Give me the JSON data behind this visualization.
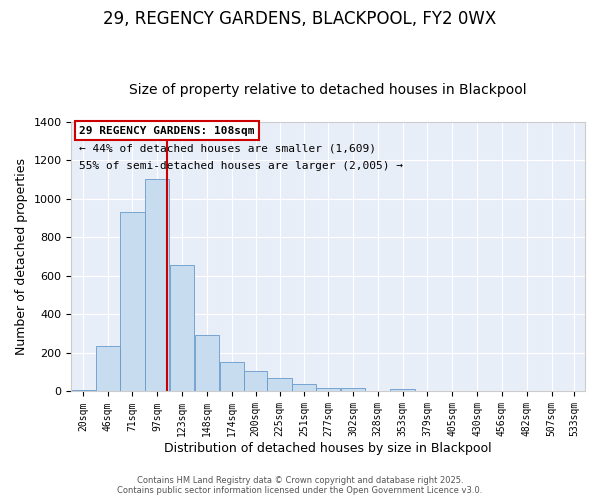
{
  "title": "29, REGENCY GARDENS, BLACKPOOL, FY2 0WX",
  "subtitle": "Size of property relative to detached houses in Blackpool",
  "xlabel": "Distribution of detached houses by size in Blackpool",
  "ylabel": "Number of detached properties",
  "bar_values": [
    10,
    235,
    930,
    1105,
    655,
    295,
    155,
    105,
    68,
    38,
    18,
    18,
    0,
    12,
    0,
    0,
    0,
    5,
    0,
    0,
    0
  ],
  "bin_edges": [
    7.5,
    32.5,
    58.5,
    84.5,
    110.5,
    136.5,
    162.5,
    188.5,
    212.5,
    238.5,
    263.5,
    289.5,
    315.5,
    341.5,
    367.5,
    393.5,
    419.5,
    445.5,
    471.5,
    497.5,
    523.5,
    545.5
  ],
  "bar_color": "#c8dcf0",
  "bar_edge_color": "#6699cc",
  "vline_x": 108,
  "vline_color": "#cc0000",
  "ylim": [
    0,
    1400
  ],
  "xlim": [
    7.5,
    545.5
  ],
  "annotation_title": "29 REGENCY GARDENS: 108sqm",
  "annotation_line1": "← 44% of detached houses are smaller (1,609)",
  "annotation_line2": "55% of semi-detached houses are larger (2,005) →",
  "annotation_box_color": "#ffffff",
  "annotation_box_edge": "#cc0000",
  "footer1": "Contains HM Land Registry data © Crown copyright and database right 2025.",
  "footer2": "Contains public sector information licensed under the Open Government Licence v3.0.",
  "background_color": "#ffffff",
  "plot_bg_color": "#e8eef8",
  "grid_color": "#ffffff",
  "title_fontsize": 12,
  "subtitle_fontsize": 10,
  "tick_labels": [
    "20sqm",
    "46sqm",
    "71sqm",
    "97sqm",
    "123sqm",
    "148sqm",
    "174sqm",
    "200sqm",
    "225sqm",
    "251sqm",
    "277sqm",
    "302sqm",
    "328sqm",
    "353sqm",
    "379sqm",
    "405sqm",
    "430sqm",
    "456sqm",
    "482sqm",
    "507sqm",
    "533sqm"
  ],
  "yticks": [
    0,
    200,
    400,
    600,
    800,
    1000,
    1200,
    1400
  ]
}
